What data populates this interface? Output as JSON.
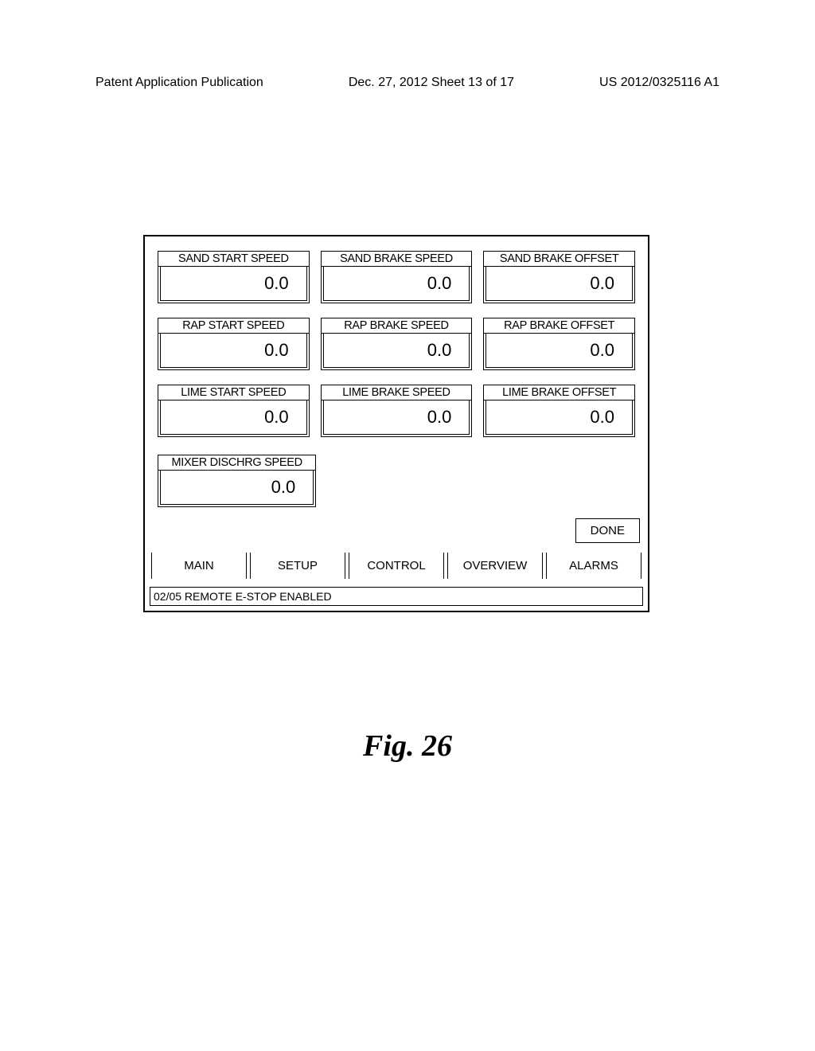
{
  "header": {
    "left": "Patent Application Publication",
    "center": "Dec. 27, 2012  Sheet 13 of 17",
    "right": "US 2012/0325116 A1"
  },
  "params": [
    {
      "label": "SAND START SPEED",
      "value": "0.0"
    },
    {
      "label": "SAND BRAKE SPEED",
      "value": "0.0"
    },
    {
      "label": "SAND BRAKE OFFSET",
      "value": "0.0"
    },
    {
      "label": "RAP START SPEED",
      "value": "0.0"
    },
    {
      "label": "RAP BRAKE SPEED",
      "value": "0.0"
    },
    {
      "label": "RAP BRAKE OFFSET",
      "value": "0.0"
    },
    {
      "label": "LIME START SPEED",
      "value": "0.0"
    },
    {
      "label": "LIME BRAKE SPEED",
      "value": "0.0"
    },
    {
      "label": "LIME BRAKE OFFSET",
      "value": "0.0"
    }
  ],
  "mixer": {
    "label": "MIXER DISCHRG SPEED",
    "value": "0.0"
  },
  "done_label": "DONE",
  "nav": [
    {
      "label": "MAIN"
    },
    {
      "label": "SETUP"
    },
    {
      "label": "CONTROL"
    },
    {
      "label": "OVERVIEW"
    },
    {
      "label": "ALARMS"
    }
  ],
  "status": "02/05 REMOTE E-STOP ENABLED",
  "figure_caption": "Fig. 26"
}
